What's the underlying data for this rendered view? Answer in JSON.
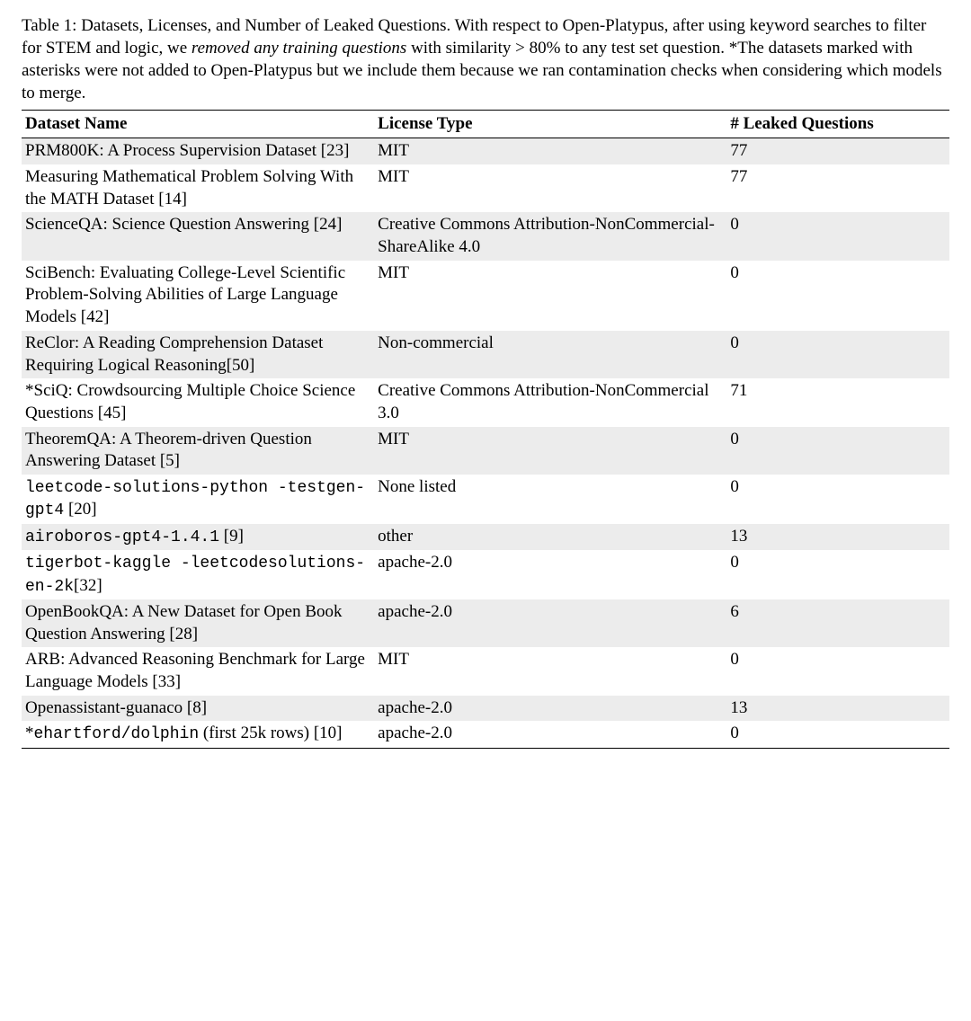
{
  "caption": {
    "prefix": "Table 1:  Datasets, Licenses, and Number of Leaked Questions.  With respect to Open-Platypus, after using keyword searches to filter for STEM and logic, we ",
    "italic": "removed any training questions",
    "suffix": " with similarity > 80% to any test set question.  *The datasets marked with asterisks were not added to Open-Platypus but we include them because we ran contamination checks when considering which models to merge."
  },
  "table": {
    "headers": [
      "Dataset Name",
      "License Type",
      "# Leaked Questions"
    ],
    "col_widths_pct": [
      38,
      38,
      24
    ],
    "header_fontweight": "bold",
    "row_shade_color": "#ececec",
    "background_color": "#ffffff",
    "border_color": "#000000",
    "rows": [
      {
        "shade": true,
        "name_parts": [
          {
            "t": "PRM800K: A Process Supervision Dataset [23]",
            "mono": false
          }
        ],
        "license": "MIT",
        "leaked": "77"
      },
      {
        "shade": false,
        "name_parts": [
          {
            "t": "Measuring Mathematical Problem Solving With the MATH Dataset [14]",
            "mono": false
          }
        ],
        "license": "MIT",
        "leaked": "77"
      },
      {
        "shade": true,
        "name_parts": [
          {
            "t": "ScienceQA: Science Question Answering [24]",
            "mono": false
          }
        ],
        "license": "Creative Commons Attribution-NonCommercial-ShareAlike 4.0",
        "leaked": "0"
      },
      {
        "shade": false,
        "name_parts": [
          {
            "t": "SciBench: Evaluating College-Level Scientific Problem-Solving Abilities of Large Language Models [42]",
            "mono": false
          }
        ],
        "license": "MIT",
        "leaked": "0"
      },
      {
        "shade": true,
        "name_parts": [
          {
            "t": "ReClor: A Reading Comprehension Dataset Requiring Logical Reasoning[50]",
            "mono": false
          }
        ],
        "license": "Non-commercial",
        "leaked": "0"
      },
      {
        "shade": false,
        "name_parts": [
          {
            "t": "*SciQ: Crowdsourcing Multiple Choice Science Questions [45]",
            "mono": false
          }
        ],
        "license": "Creative Commons Attribution-NonCommercial 3.0",
        "leaked": "71"
      },
      {
        "shade": true,
        "name_parts": [
          {
            "t": "TheoremQA: A Theorem-driven Question Answering Dataset [5]",
            "mono": false
          }
        ],
        "license": "MIT",
        "leaked": "0"
      },
      {
        "shade": false,
        "name_parts": [
          {
            "t": "leetcode-solutions-python -testgen-gpt4",
            "mono": true
          },
          {
            "t": " [20]",
            "mono": false
          }
        ],
        "license": "None listed",
        "leaked": "0"
      },
      {
        "shade": true,
        "name_parts": [
          {
            "t": "airoboros-gpt4-1.4.1",
            "mono": true
          },
          {
            "t": " [9]",
            "mono": false
          }
        ],
        "license": "other",
        "leaked": "13"
      },
      {
        "shade": false,
        "name_parts": [
          {
            "t": "tigerbot-kaggle -leetcodesolutions-en-2k",
            "mono": true
          },
          {
            "t": "[32]",
            "mono": false
          }
        ],
        "license": "apache-2.0",
        "leaked": "0"
      },
      {
        "shade": true,
        "name_parts": [
          {
            "t": "OpenBookQA: A New Dataset for Open Book Question Answering [28]",
            "mono": false
          }
        ],
        "license": "apache-2.0",
        "leaked": "6"
      },
      {
        "shade": false,
        "name_parts": [
          {
            "t": "ARB: Advanced Reasoning Benchmark for Large Language Models [33]",
            "mono": false
          }
        ],
        "license": "MIT",
        "leaked": "0"
      },
      {
        "shade": true,
        "name_parts": [
          {
            "t": "Openassistant-guanaco [8]",
            "mono": false
          }
        ],
        "license": "apache-2.0",
        "leaked": "13"
      },
      {
        "shade": false,
        "name_parts": [
          {
            "t": "*",
            "mono": false
          },
          {
            "t": "ehartford/dolphin",
            "mono": true
          },
          {
            "t": " (first 25k rows) [10]",
            "mono": false
          }
        ],
        "license": "apache-2.0",
        "leaked": "0"
      }
    ]
  }
}
